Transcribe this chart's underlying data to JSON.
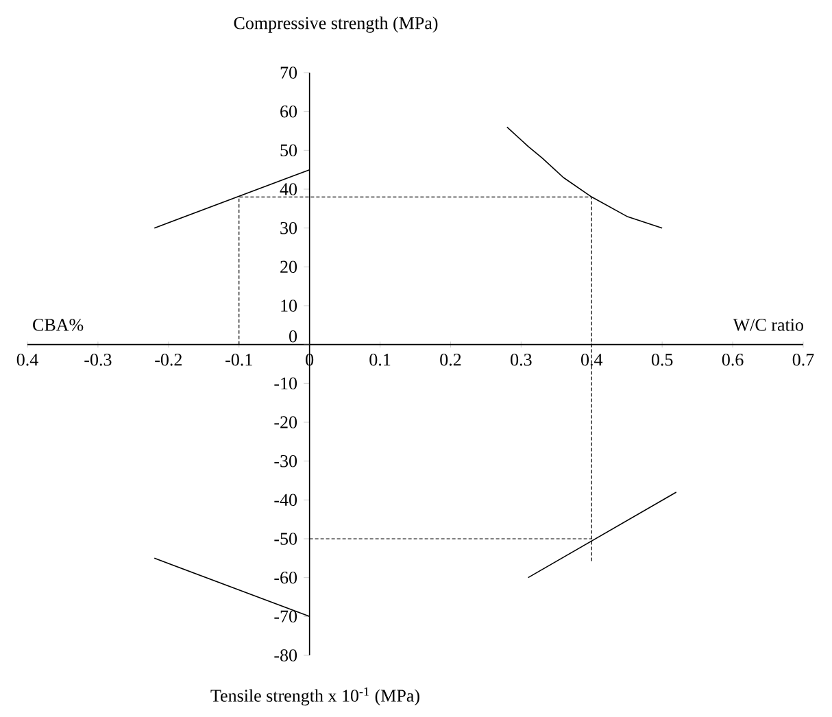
{
  "chart_data": {
    "type": "line",
    "ylabel": "Compressive strength (MPa)",
    "xlabel": "W/C ratio",
    "annotations": [
      "CBA%",
      "Tensile strength x 10$^{-1}$ (MPa)"
    ],
    "xlim": [
      -0.4,
      0.7
    ],
    "ylim": [
      -80,
      70
    ],
    "xticks": [
      {
        "value": -0.4,
        "label": "0.4"
      },
      -0.3,
      -0.2,
      -0.1,
      0,
      0.1,
      0.2,
      0.3,
      0.4,
      0.5,
      0.6,
      0.7
    ],
    "yticks": [
      -80,
      -70,
      -60,
      -50,
      -40,
      -30,
      -20,
      -10,
      0,
      10,
      20,
      30,
      40,
      50,
      60,
      70
    ],
    "marker": "none",
    "series": [
      {
        "color": "#000000",
        "line_style": "solid",
        "x": [
          -0.22,
          0
        ],
        "values": [
          30,
          45
        ]
      },
      {
        "color": "#000000",
        "line_style": "solid",
        "x": [
          0.28,
          0.31,
          0.33,
          0.36,
          0.4,
          0.45,
          0.5
        ],
        "values": [
          56,
          51,
          48,
          43,
          38,
          33,
          30
        ]
      },
      {
        "color": "#000000",
        "line_style": "solid",
        "x": [
          -0.22,
          0
        ],
        "values": [
          -55,
          -70
        ]
      },
      {
        "color": "#000000",
        "line_style": "solid",
        "x": [
          0.31,
          0.52
        ],
        "values": [
          -60,
          -38
        ]
      },
      {
        "color": "#000000",
        "line_style": "dashed",
        "x": [
          -0.1,
          -0.1,
          0.4,
          0.4
        ],
        "values": [
          0,
          38,
          38,
          -56
        ]
      },
      {
        "color": "#000000",
        "line_style": "dashed",
        "x": [
          0,
          0.4
        ],
        "values": [
          -50,
          -50
        ]
      }
    ]
  }
}
